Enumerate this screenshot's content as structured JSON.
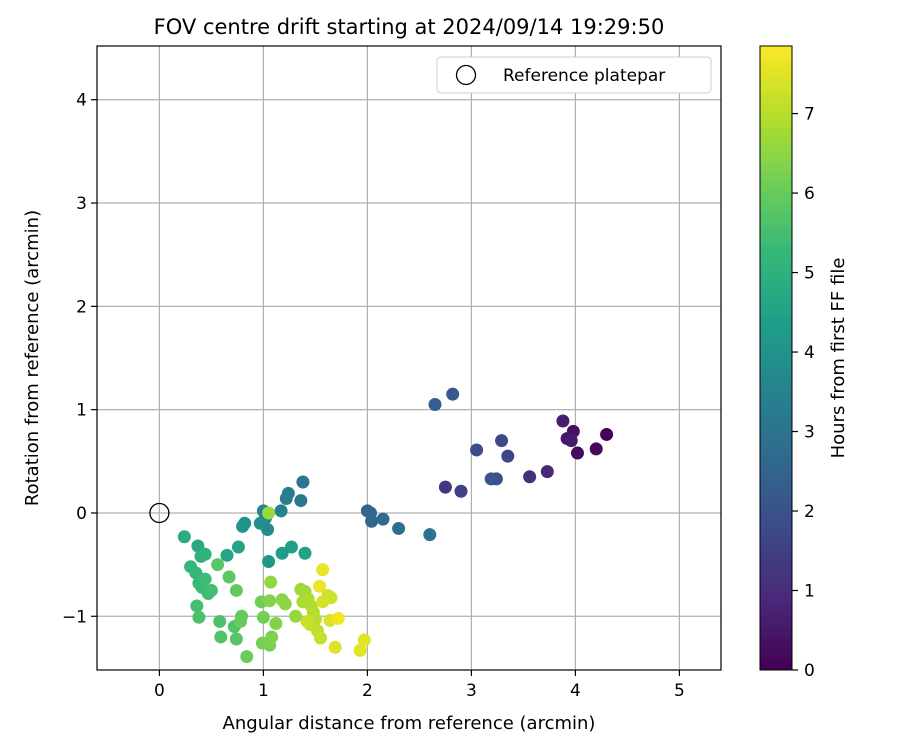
{
  "chart_data": {
    "type": "scatter",
    "title": "FOV centre drift starting at 2024/09/14 19:29:50",
    "xlabel": "Angular distance from reference (arcmin)",
    "ylabel": "Rotation from reference (arcmin)",
    "xlim": [
      -0.6,
      5.4
    ],
    "ylim": [
      -1.52,
      4.52
    ],
    "xticks": [
      0,
      1,
      2,
      3,
      4,
      5
    ],
    "yticks": [
      -1,
      0,
      1,
      2,
      3,
      4
    ],
    "grid": true,
    "legend": {
      "placement": "top-right",
      "entries": [
        "Reference platepar"
      ]
    },
    "reference_point": {
      "label": "Reference platepar",
      "x": 0.0,
      "y": 0.0
    },
    "colorbar": {
      "label": "Hours from first FF file",
      "range": [
        0,
        7.85
      ],
      "ticks": [
        0,
        1,
        2,
        3,
        4,
        5,
        6,
        7
      ],
      "colormap": "viridis",
      "colormap_stops": [
        "#440154",
        "#482878",
        "#3e4989",
        "#31688e",
        "#26828e",
        "#1f9e89",
        "#35b779",
        "#6ece58",
        "#b5de2b",
        "#fde725"
      ]
    },
    "points": [
      {
        "x": 4.3,
        "y": 0.76,
        "t": 0.05
      },
      {
        "x": 4.2,
        "y": 0.62,
        "t": 0.15
      },
      {
        "x": 4.02,
        "y": 0.58,
        "t": 0.25
      },
      {
        "x": 3.98,
        "y": 0.79,
        "t": 0.35
      },
      {
        "x": 3.92,
        "y": 0.72,
        "t": 0.45
      },
      {
        "x": 3.96,
        "y": 0.7,
        "t": 0.55
      },
      {
        "x": 3.88,
        "y": 0.89,
        "t": 0.65
      },
      {
        "x": 3.73,
        "y": 0.4,
        "t": 0.85
      },
      {
        "x": 3.56,
        "y": 0.35,
        "t": 1.05
      },
      {
        "x": 2.75,
        "y": 0.25,
        "t": 1.25
      },
      {
        "x": 2.9,
        "y": 0.21,
        "t": 1.45
      },
      {
        "x": 3.35,
        "y": 0.55,
        "t": 1.65
      },
      {
        "x": 3.29,
        "y": 0.7,
        "t": 1.75
      },
      {
        "x": 3.05,
        "y": 0.61,
        "t": 1.85
      },
      {
        "x": 3.24,
        "y": 0.33,
        "t": 2.0
      },
      {
        "x": 3.19,
        "y": 0.33,
        "t": 2.1
      },
      {
        "x": 2.82,
        "y": 1.15,
        "t": 2.2
      },
      {
        "x": 2.65,
        "y": 1.05,
        "t": 2.3
      },
      {
        "x": 2.0,
        "y": 0.02,
        "t": 2.45
      },
      {
        "x": 2.03,
        "y": 0.0,
        "t": 2.55
      },
      {
        "x": 2.04,
        "y": -0.08,
        "t": 2.65
      },
      {
        "x": 2.15,
        "y": -0.06,
        "t": 2.75
      },
      {
        "x": 2.3,
        "y": -0.15,
        "t": 2.85
      },
      {
        "x": 2.6,
        "y": -0.21,
        "t": 2.95
      },
      {
        "x": 1.38,
        "y": 0.3,
        "t": 3.05
      },
      {
        "x": 1.36,
        "y": 0.12,
        "t": 3.15
      },
      {
        "x": 1.24,
        "y": 0.19,
        "t": 3.25
      },
      {
        "x": 1.22,
        "y": 0.14,
        "t": 3.35
      },
      {
        "x": 1.17,
        "y": 0.02,
        "t": 3.45
      },
      {
        "x": 1.0,
        "y": 0.02,
        "t": 3.55
      },
      {
        "x": 1.02,
        "y": -0.05,
        "t": 3.65
      },
      {
        "x": 1.04,
        "y": -0.16,
        "t": 3.75
      },
      {
        "x": 0.97,
        "y": -0.1,
        "t": 3.85
      },
      {
        "x": 0.82,
        "y": -0.1,
        "t": 3.95
      },
      {
        "x": 0.8,
        "y": -0.13,
        "t": 4.05
      },
      {
        "x": 1.05,
        "y": -0.47,
        "t": 4.15
      },
      {
        "x": 1.18,
        "y": -0.39,
        "t": 4.25
      },
      {
        "x": 1.27,
        "y": -0.33,
        "t": 4.35
      },
      {
        "x": 1.4,
        "y": -0.39,
        "t": 4.45
      },
      {
        "x": 0.76,
        "y": -0.33,
        "t": 4.55
      },
      {
        "x": 0.65,
        "y": -0.41,
        "t": 4.65
      },
      {
        "x": 0.37,
        "y": -0.32,
        "t": 4.75
      },
      {
        "x": 0.24,
        "y": -0.23,
        "t": 4.85
      },
      {
        "x": 0.4,
        "y": -0.42,
        "t": 4.95
      },
      {
        "x": 0.44,
        "y": -0.4,
        "t": 5.05
      },
      {
        "x": 0.3,
        "y": -0.52,
        "t": 5.15
      },
      {
        "x": 0.35,
        "y": -0.58,
        "t": 5.2
      },
      {
        "x": 0.38,
        "y": -0.68,
        "t": 5.25
      },
      {
        "x": 0.41,
        "y": -0.72,
        "t": 5.3
      },
      {
        "x": 0.44,
        "y": -0.64,
        "t": 5.35
      },
      {
        "x": 0.47,
        "y": -0.78,
        "t": 5.4
      },
      {
        "x": 0.5,
        "y": -0.75,
        "t": 5.45
      },
      {
        "x": 0.36,
        "y": -0.9,
        "t": 5.5
      },
      {
        "x": 0.38,
        "y": -1.01,
        "t": 5.55
      },
      {
        "x": 0.58,
        "y": -1.05,
        "t": 5.6
      },
      {
        "x": 0.59,
        "y": -1.2,
        "t": 5.65
      },
      {
        "x": 0.72,
        "y": -1.1,
        "t": 5.7
      },
      {
        "x": 0.74,
        "y": -1.22,
        "t": 5.75
      },
      {
        "x": 0.56,
        "y": -0.5,
        "t": 5.8
      },
      {
        "x": 0.67,
        "y": -0.62,
        "t": 5.85
      },
      {
        "x": 0.74,
        "y": -0.75,
        "t": 5.9
      },
      {
        "x": 0.79,
        "y": -1.0,
        "t": 5.95
      },
      {
        "x": 0.78,
        "y": -1.05,
        "t": 6.0
      },
      {
        "x": 0.84,
        "y": -1.39,
        "t": 6.05
      },
      {
        "x": 0.98,
        "y": -0.86,
        "t": 6.1
      },
      {
        "x": 1.0,
        "y": -1.01,
        "t": 6.15
      },
      {
        "x": 0.99,
        "y": -1.26,
        "t": 6.2
      },
      {
        "x": 1.06,
        "y": -1.28,
        "t": 6.25
      },
      {
        "x": 1.08,
        "y": -1.2,
        "t": 6.3
      },
      {
        "x": 1.12,
        "y": -1.07,
        "t": 6.35
      },
      {
        "x": 1.06,
        "y": -0.85,
        "t": 6.4
      },
      {
        "x": 1.18,
        "y": -0.84,
        "t": 6.45
      },
      {
        "x": 1.21,
        "y": -0.88,
        "t": 6.5
      },
      {
        "x": 1.07,
        "y": -0.67,
        "t": 6.55
      },
      {
        "x": 1.31,
        "y": -1.0,
        "t": 6.6
      },
      {
        "x": 1.05,
        "y": 0.0,
        "t": 6.65
      },
      {
        "x": 1.36,
        "y": -0.74,
        "t": 6.7
      },
      {
        "x": 1.4,
        "y": -0.76,
        "t": 6.75
      },
      {
        "x": 1.38,
        "y": -0.86,
        "t": 6.8
      },
      {
        "x": 1.43,
        "y": -0.83,
        "t": 6.85
      },
      {
        "x": 1.46,
        "y": -0.9,
        "t": 6.9
      },
      {
        "x": 1.48,
        "y": -0.96,
        "t": 6.95
      },
      {
        "x": 1.5,
        "y": -1.03,
        "t": 7.0
      },
      {
        "x": 1.45,
        "y": -1.08,
        "t": 7.05
      },
      {
        "x": 1.52,
        "y": -1.14,
        "t": 7.1
      },
      {
        "x": 1.55,
        "y": -1.21,
        "t": 7.15
      },
      {
        "x": 1.42,
        "y": -1.05,
        "t": 7.2
      },
      {
        "x": 1.62,
        "y": -0.8,
        "t": 7.25
      },
      {
        "x": 1.65,
        "y": -0.82,
        "t": 7.3
      },
      {
        "x": 1.57,
        "y": -0.86,
        "t": 7.35
      },
      {
        "x": 1.64,
        "y": -1.04,
        "t": 7.4
      },
      {
        "x": 1.69,
        "y": -1.3,
        "t": 7.45
      },
      {
        "x": 1.97,
        "y": -1.23,
        "t": 7.5
      },
      {
        "x": 1.93,
        "y": -1.33,
        "t": 7.55
      },
      {
        "x": 1.57,
        "y": -0.55,
        "t": 7.6
      },
      {
        "x": 1.54,
        "y": -0.71,
        "t": 7.65
      },
      {
        "x": 1.72,
        "y": -1.02,
        "t": 7.7
      }
    ]
  }
}
